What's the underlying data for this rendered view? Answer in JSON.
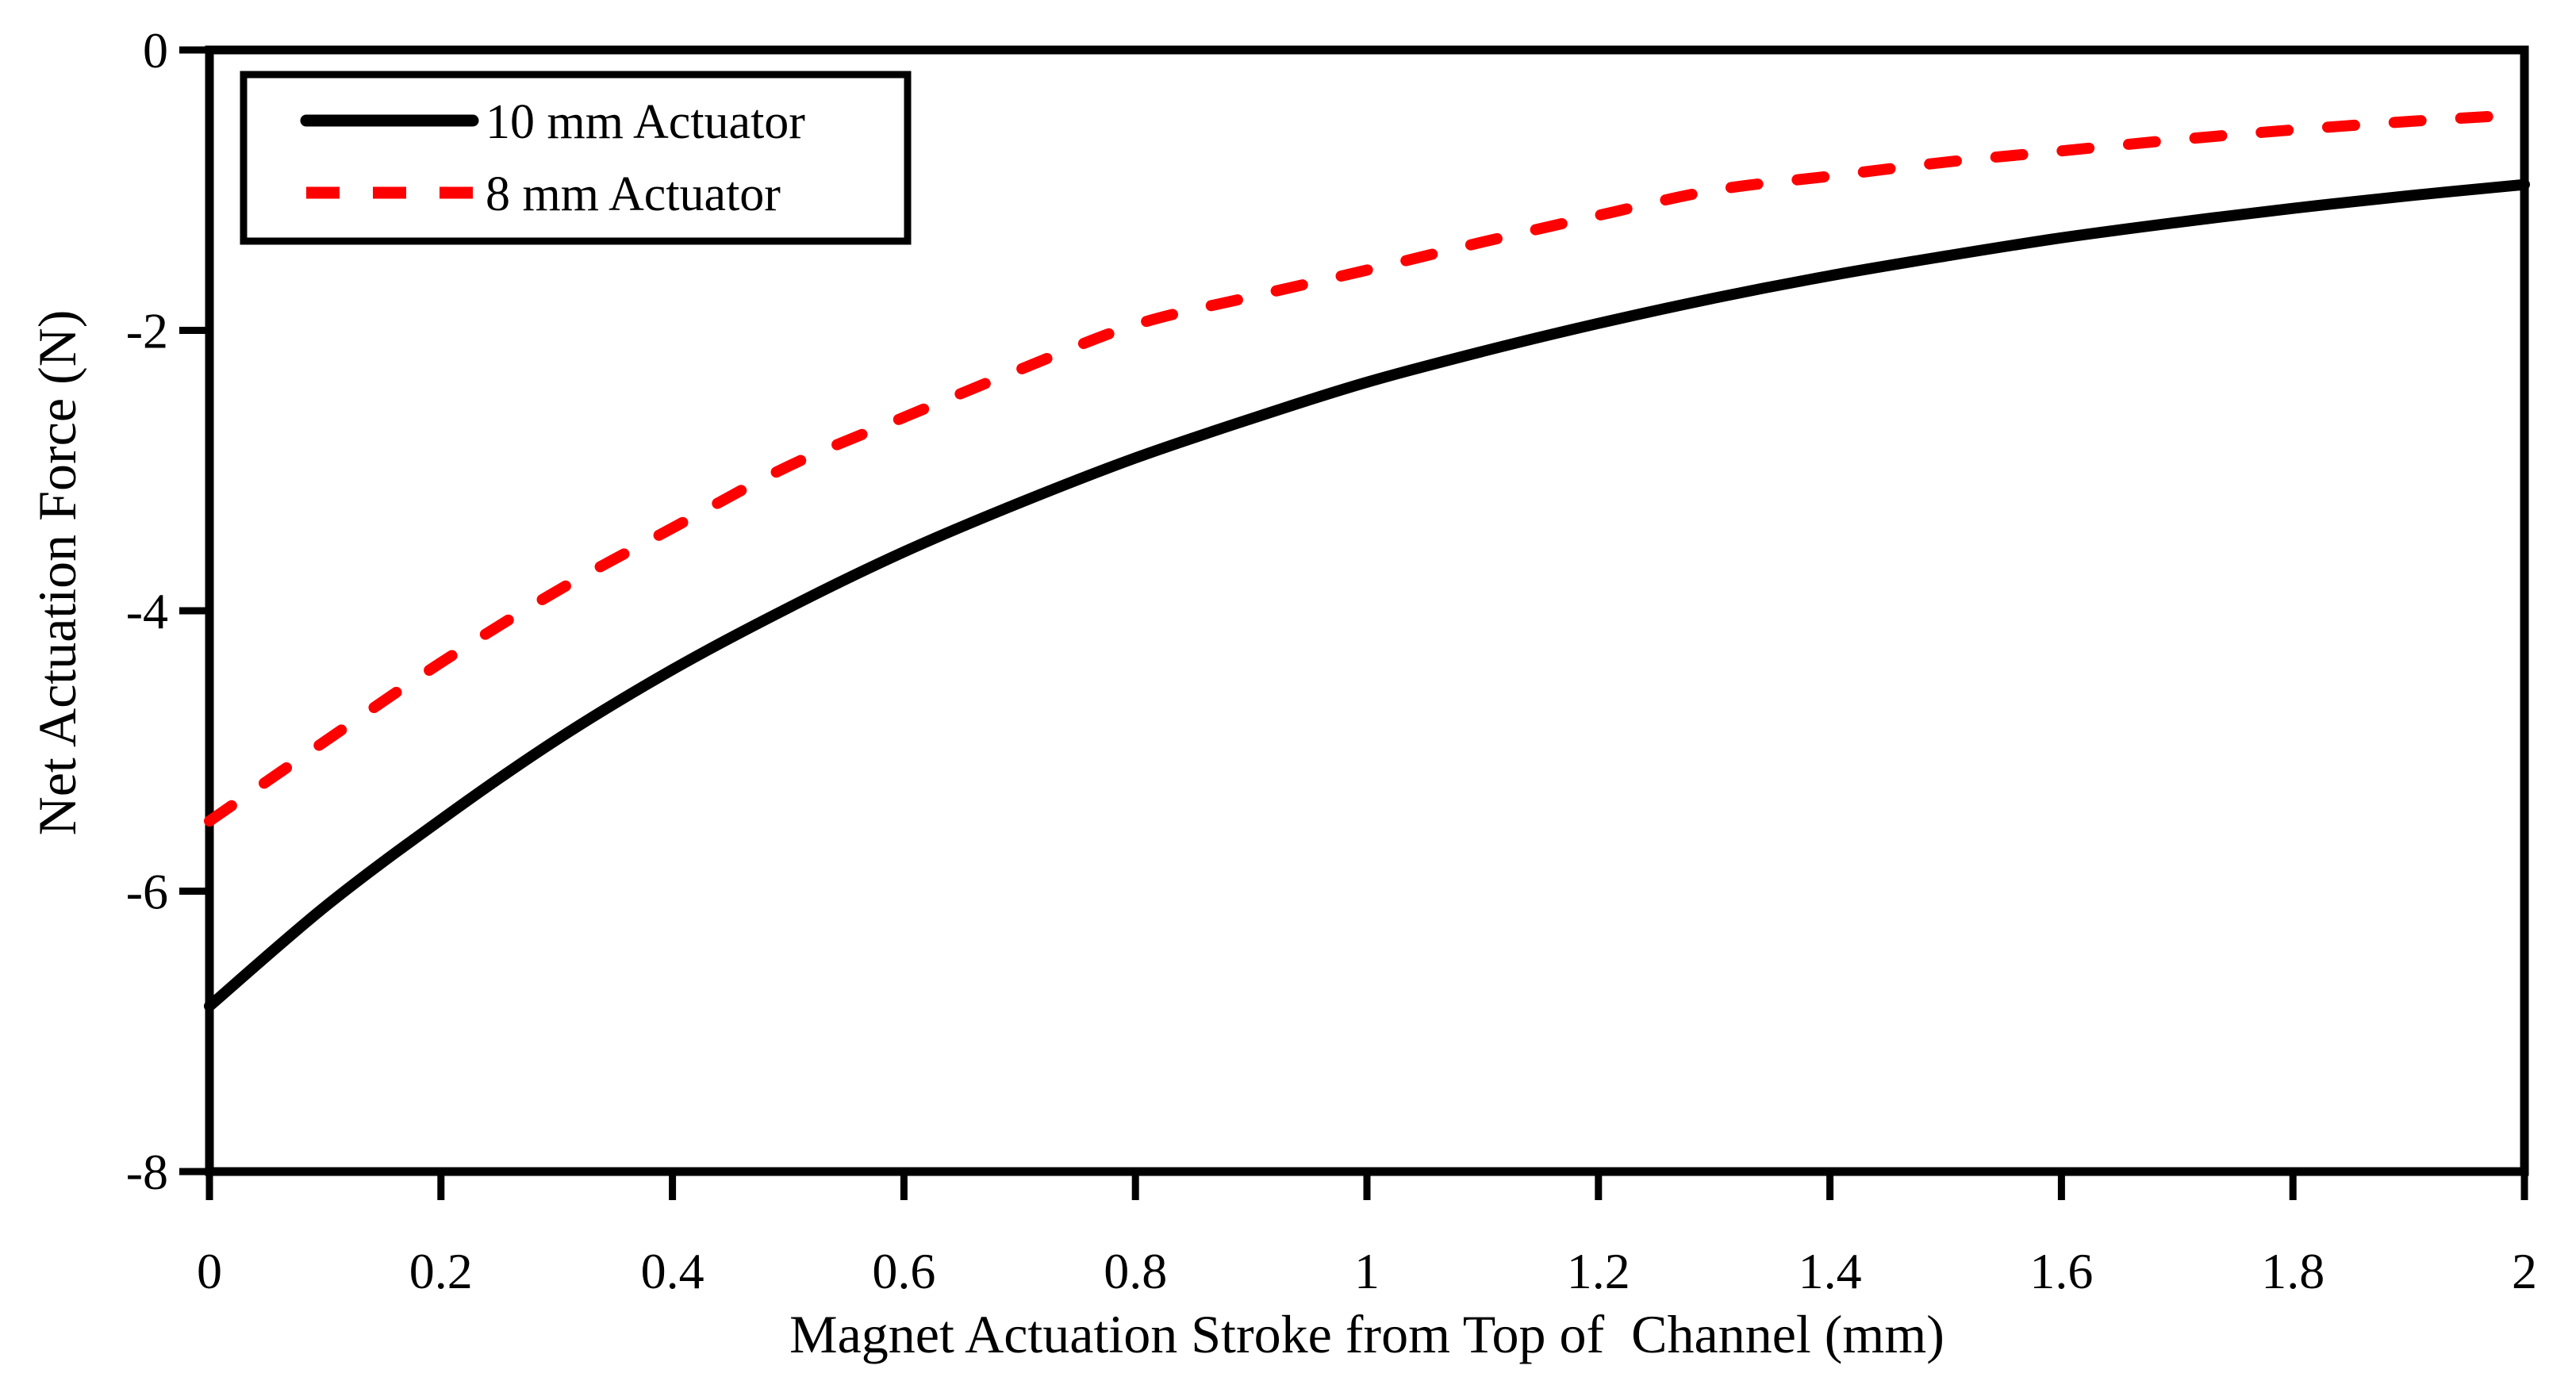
{
  "page": {
    "background": "#ffffff"
  },
  "chart_data": {
    "type": "line",
    "title": "",
    "xlabel": "Magnet Actuation Stroke from Top of  Channel (mm)",
    "ylabel": "Net Actuation Force (N)",
    "xlim": [
      0,
      2
    ],
    "ylim": [
      -8,
      0
    ],
    "grid": false,
    "legend_position": "top-left",
    "x_ticks": {
      "values": [
        0,
        0.2,
        0.4,
        0.6,
        0.8,
        1,
        1.2,
        1.4,
        1.6,
        1.8,
        2
      ],
      "labels": [
        "0",
        "0.2",
        "0.4",
        "0.6",
        "0.8",
        "1",
        "1.2",
        "1.4",
        "1.6",
        "1.8",
        "2"
      ]
    },
    "y_ticks": {
      "values": [
        0,
        -2,
        -4,
        -6,
        -8
      ],
      "labels": [
        "0",
        "-2",
        "-4",
        "-6",
        "-8"
      ]
    },
    "x": [
      0,
      0.1,
      0.2,
      0.3,
      0.4,
      0.5,
      0.6,
      0.7,
      0.8,
      0.9,
      1,
      1.1,
      1.2,
      1.3,
      1.4,
      1.5,
      1.6,
      1.7,
      1.8,
      1.9,
      2
    ],
    "series": [
      {
        "name": "10 mm Actuator",
        "color": "#000000",
        "line_style": "solid",
        "values": [
          -6.82,
          -6.11,
          -5.49,
          -4.92,
          -4.42,
          -3.98,
          -3.58,
          -3.23,
          -2.91,
          -2.63,
          -2.37,
          -2.15,
          -1.95,
          -1.77,
          -1.61,
          -1.47,
          -1.34,
          -1.23,
          -1.13,
          -1.04,
          -0.96
        ]
      },
      {
        "name": "8 mm Actuator",
        "color": "#ff0000",
        "line_style": "dashed",
        "values": [
          -5.5,
          -4.93,
          -4.37,
          -3.86,
          -3.41,
          -2.97,
          -2.62,
          -2.28,
          -1.96,
          -1.76,
          -1.57,
          -1.37,
          -1.18,
          -1.0,
          -0.9,
          -0.8,
          -0.72,
          -0.64,
          -0.57,
          -0.51,
          -0.46
        ]
      }
    ]
  }
}
